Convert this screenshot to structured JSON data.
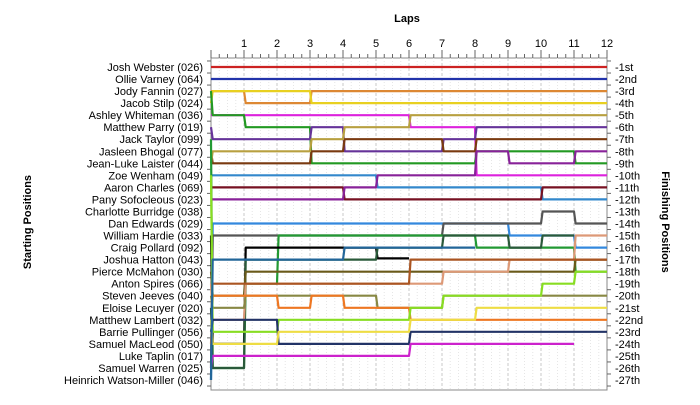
{
  "chart_data": {
    "type": "line",
    "title": "Laps",
    "ylabel_left": "Starting Positions",
    "ylabel_right": "Finishing Positions",
    "laps": [
      1,
      2,
      3,
      4,
      5,
      6,
      7,
      8,
      9,
      10,
      11,
      12
    ],
    "x_range": [
      0,
      12
    ],
    "positions": 27,
    "grid": true,
    "starting_grid": [
      "Josh Webster (026)",
      "Ollie Varney (064)",
      "Jody Fannin (027)",
      "Jacob Stilp (024)",
      "Ashley Whiteman (036)",
      "Matthew Parry (019)",
      "Jack Taylor (099)",
      "Jasleen Bhogal (077)",
      "Jean-Luke Laister (044)",
      "Zoe Wenham (049)",
      "Aaron Charles (069)",
      "Pany Sofocleous (023)",
      "Charlotte Burridge (038)",
      "Dan Edwards (029)",
      "William Hardie (033)",
      "Craig Pollard (092)",
      "Joshua Hatton (043)",
      "Pierce McMahon (030)",
      "Anton Spires (066)",
      "Steven Jeeves (040)",
      "Eloise Lecuyer (020)",
      "Matthew Lambert (032)",
      "Barrie Pullinger (056)",
      "Samuel MacLeod (050)",
      "Luke Taplin (017)",
      "Samuel Warren (025)",
      "Heinrich Watson-Miller (046)"
    ],
    "finishing_labels": [
      "1st",
      "2nd",
      "3rd",
      "4th",
      "5th",
      "6th",
      "7th",
      "8th",
      "9th",
      "10th",
      "11th",
      "12th",
      "13th",
      "14th",
      "15th",
      "16th",
      "17th",
      "18th",
      "19th",
      "20th",
      "21st",
      "22nd",
      "23rd",
      "24th",
      "25th",
      "26th",
      "27th"
    ],
    "series": [
      {
        "color": "#cc2222",
        "values": [
          1,
          1,
          1,
          1,
          1,
          1,
          1,
          1,
          1,
          1,
          1,
          1,
          1
        ]
      },
      {
        "color": "#2233aa",
        "values": [
          2,
          2,
          2,
          2,
          2,
          2,
          2,
          2,
          2,
          2,
          2,
          2,
          2
        ]
      },
      {
        "color": "#dd8833",
        "values": [
          3,
          3,
          4,
          4,
          3,
          3,
          3,
          3,
          3,
          3,
          3,
          3,
          3
        ]
      },
      {
        "color": "#e8d020",
        "values": [
          4,
          3,
          3,
          3,
          4,
          4,
          4,
          4,
          4,
          4,
          4,
          4,
          4
        ]
      },
      {
        "color": "#dd22dd",
        "values": [
          5,
          5,
          5,
          5,
          5,
          5,
          5,
          6,
          6,
          10,
          10,
          10,
          10
        ]
      },
      {
        "color": "#229922",
        "values": [
          3,
          5,
          6,
          6,
          9,
          9,
          9,
          9,
          9,
          8,
          8,
          8,
          9
        ]
      },
      {
        "color": "#663399",
        "values": [
          6,
          7,
          7,
          7,
          6,
          8,
          8,
          8,
          7,
          6,
          6,
          6,
          6
        ]
      },
      {
        "color": "#7a3a10",
        "values": [
          8,
          9,
          9,
          9,
          8,
          7,
          7,
          7,
          8,
          7,
          7,
          7,
          7
        ]
      },
      {
        "color": "#b8a040",
        "values": [
          9,
          8,
          8,
          8,
          7,
          6,
          6,
          5,
          5,
          5,
          5,
          5,
          5
        ]
      },
      {
        "color": "#3388cc",
        "values": [
          10,
          10,
          10,
          10,
          10,
          10,
          11,
          11,
          11,
          11,
          11,
          12,
          12
        ]
      },
      {
        "color": "#771122",
        "values": [
          11,
          11,
          11,
          11,
          11,
          12,
          12,
          12,
          12,
          12,
          12,
          11,
          11
        ]
      },
      {
        "color": "#882299",
        "values": [
          12,
          12,
          12,
          12,
          12,
          11,
          10,
          10,
          10,
          8,
          9,
          9,
          8
        ]
      },
      {
        "color": "#3388dd",
        "values": [
          27,
          14,
          14,
          14,
          14,
          14,
          14,
          14,
          14,
          14,
          15,
          15,
          16
        ]
      },
      {
        "color": "#555555",
        "values": [
          26,
          15,
          15,
          15,
          15,
          15,
          15,
          15,
          14,
          14,
          14,
          13,
          14
        ]
      },
      {
        "color": "#229933",
        "values": [
          7,
          26,
          19,
          15,
          15,
          15,
          15,
          15,
          15,
          16,
          16,
          16,
          18
        ]
      },
      {
        "color": "#000000",
        "values": [
          15,
          24,
          16,
          16,
          16,
          16,
          16.9
        ]
      },
      {
        "color": "#2a5a3a",
        "values": [
          21,
          26,
          17,
          17,
          17,
          17,
          16,
          16,
          15,
          15,
          16,
          15
        ]
      },
      {
        "color": "#6a5a1a",
        "values": [
          18,
          20,
          18,
          18,
          18,
          18,
          18,
          18,
          18,
          18,
          18,
          18,
          17
        ]
      },
      {
        "color": "#dd9977",
        "values": [
          19,
          22,
          19,
          19,
          19,
          19,
          19,
          19,
          18,
          18,
          17,
          17,
          15
        ]
      },
      {
        "color": "#aa5522",
        "values": [
          19,
          19,
          19,
          19,
          19,
          19,
          19,
          17,
          17,
          17,
          17,
          17,
          17
        ]
      },
      {
        "color": "#888844",
        "values": [
          20,
          21,
          20,
          20,
          20,
          20,
          21,
          21,
          20,
          20,
          20,
          20,
          20
        ]
      },
      {
        "color": "#ee7722",
        "values": [
          24,
          20,
          20,
          21,
          20,
          21,
          21,
          22,
          22,
          22,
          22,
          22,
          22
        ]
      },
      {
        "color": "#88dd22",
        "values": [
          10,
          23,
          23,
          22,
          22,
          22,
          22,
          21,
          20,
          20,
          20,
          19,
          18
        ]
      },
      {
        "color": "#223366",
        "values": [
          23,
          22,
          22,
          24,
          24,
          24,
          24,
          23,
          23,
          23,
          23,
          23,
          23
        ]
      },
      {
        "color": "#eedd44",
        "values": [
          22,
          24,
          24,
          23,
          23,
          23,
          23,
          22,
          22,
          21,
          21,
          21,
          21
        ]
      },
      {
        "color": "#cc22cc",
        "values": [
          26,
          25,
          25,
          25,
          25,
          25,
          25,
          24,
          24,
          24,
          24,
          24
        ]
      },
      {
        "color": "#226699",
        "values": [
          27,
          17,
          17,
          17,
          17,
          16,
          16,
          16,
          16
        ]
      }
    ]
  }
}
